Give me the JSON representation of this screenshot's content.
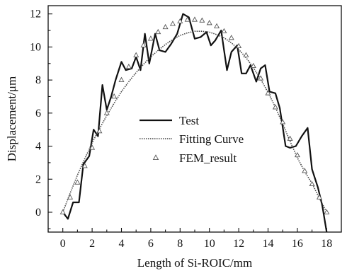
{
  "chart_data": {
    "type": "line",
    "xlabel": "Length of Si-ROIC/mm",
    "ylabel": "Displacement/μm",
    "xlim": [
      -1,
      19
    ],
    "ylim": [
      -1.2,
      12.5
    ],
    "xticks": [
      0,
      2,
      4,
      6,
      8,
      10,
      12,
      14,
      16,
      18
    ],
    "yticks": [
      0,
      2,
      4,
      6,
      8,
      10,
      12
    ],
    "x_minor_step": 1,
    "y_minor_step": 1,
    "grid": false,
    "legend_position": "center",
    "series": [
      {
        "name": "Test",
        "style": "solid",
        "color": "#111111",
        "x": [
          0,
          0.35,
          0.7,
          1.1,
          1.4,
          1.8,
          2.1,
          2.4,
          2.7,
          3.0,
          3.3,
          3.6,
          4.0,
          4.3,
          4.7,
          5.0,
          5.3,
          5.6,
          5.9,
          6.3,
          6.6,
          7.0,
          7.4,
          7.8,
          8.2,
          8.6,
          9.0,
          9.4,
          9.8,
          10.1,
          10.4,
          10.8,
          11.2,
          11.5,
          11.9,
          12.2,
          12.5,
          12.8,
          13.2,
          13.5,
          13.8,
          14.1,
          14.5,
          14.8,
          15.2,
          15.5,
          15.9,
          16.3,
          16.7,
          17.0,
          17.4,
          17.7,
          18.0
        ],
        "y": [
          0,
          -0.4,
          0.6,
          0.6,
          2.9,
          3.4,
          5.0,
          4.6,
          7.7,
          6.2,
          7.0,
          8.0,
          9.1,
          8.6,
          8.7,
          9.4,
          8.6,
          10.8,
          9.0,
          10.8,
          9.8,
          9.7,
          10.2,
          10.8,
          12.0,
          11.8,
          10.5,
          10.6,
          10.9,
          10.1,
          10.4,
          11.0,
          8.6,
          9.7,
          10.1,
          8.4,
          8.4,
          8.9,
          7.9,
          8.7,
          8.9,
          7.3,
          7.2,
          6.3,
          4.0,
          3.9,
          4.0,
          4.6,
          5.1,
          2.6,
          1.5,
          0.4,
          -1.2
        ]
      },
      {
        "name": "Fitting Curve",
        "style": "dotted",
        "color": "#444444",
        "x": [
          0,
          0.5,
          1,
          1.5,
          2,
          2.5,
          3,
          3.5,
          4,
          4.5,
          5,
          5.5,
          6,
          6.5,
          7,
          7.5,
          8,
          8.5,
          9,
          9.5,
          10,
          10.5,
          11,
          11.5,
          12,
          12.5,
          13,
          13.5,
          14,
          14.5,
          15,
          15.5,
          16,
          16.5,
          17,
          17.5,
          18
        ],
        "y": [
          0.0,
          1.15,
          2.25,
          3.25,
          4.2,
          5.05,
          5.85,
          6.6,
          7.3,
          7.9,
          8.45,
          8.95,
          9.4,
          9.8,
          10.15,
          10.45,
          10.7,
          10.85,
          10.95,
          10.95,
          10.9,
          10.75,
          10.55,
          10.25,
          9.85,
          9.35,
          8.75,
          8.05,
          7.25,
          6.35,
          5.35,
          4.3,
          3.3,
          2.45,
          1.75,
          0.85,
          0.0
        ]
      },
      {
        "name": "FEM_result",
        "style": "triangle-markers",
        "color": "#555555",
        "x": [
          0,
          0.5,
          1,
          1.5,
          2,
          2.5,
          3,
          3.5,
          4,
          4.5,
          5,
          5.5,
          6,
          6.5,
          7,
          7.5,
          8,
          8.5,
          9,
          9.5,
          10,
          10.5,
          11,
          11.5,
          12,
          12.5,
          13,
          13.5,
          14,
          14.5,
          15,
          15.5,
          16,
          16.5,
          17,
          17.5,
          18
        ],
        "y": [
          0.0,
          0.9,
          1.8,
          2.8,
          3.9,
          4.9,
          6.0,
          7.0,
          8.0,
          8.8,
          9.5,
          10.1,
          10.5,
          10.9,
          11.2,
          11.4,
          11.55,
          11.65,
          11.65,
          11.6,
          11.45,
          11.25,
          10.95,
          10.55,
          10.05,
          9.5,
          8.85,
          8.1,
          7.2,
          6.35,
          5.45,
          4.45,
          3.45,
          2.5,
          1.7,
          0.9,
          0.0
        ]
      }
    ]
  }
}
